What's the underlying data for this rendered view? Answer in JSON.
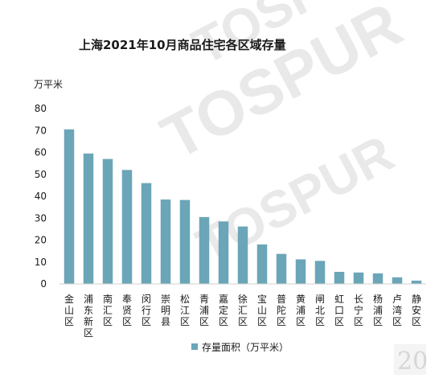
{
  "chart_data": {
    "type": "bar",
    "title": "上海2021年10月商品住宅各区域存量",
    "unit_label": "万平米",
    "ylim": [
      0,
      80
    ],
    "yticks": [
      0,
      10,
      20,
      30,
      40,
      50,
      60,
      70,
      80
    ],
    "grid": false,
    "legend_position": "bottom",
    "categories": [
      "金山区",
      "浦东新区",
      "南汇区",
      "奉贤区",
      "闵行区",
      "崇明县",
      "松江区",
      "青浦区",
      "嘉定区",
      "徐汇区",
      "宝山区",
      "普陀区",
      "黄浦区",
      "闸北区",
      "虹口区",
      "长宁区",
      "杨浦区",
      "卢湾区",
      "静安区"
    ],
    "series": [
      {
        "name": "存量面积（万平米）",
        "color": "#6ba5b8",
        "values": [
          70.5,
          59.5,
          57,
          52,
          46,
          38.5,
          38.3,
          30.5,
          28.5,
          26.2,
          18,
          13.7,
          11.2,
          10.5,
          5.5,
          5.2,
          4.8,
          3,
          1.5
        ]
      }
    ]
  }
}
